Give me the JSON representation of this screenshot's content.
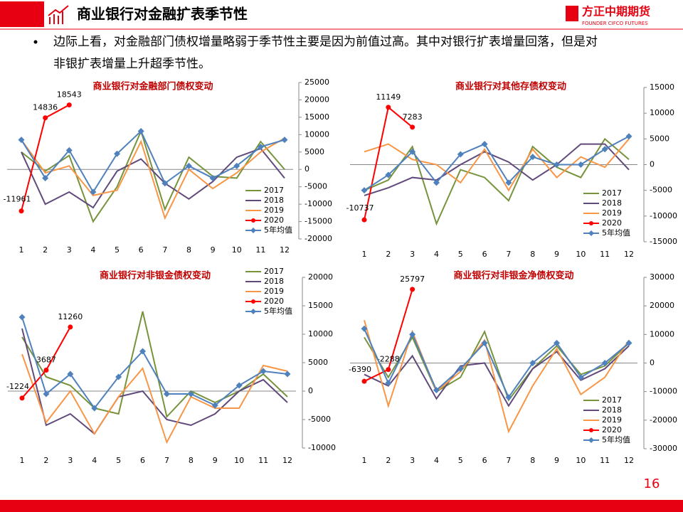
{
  "header": {
    "title": "商业银行对金融扩表季节性",
    "logo": "方正中期期货",
    "logo_en": "FOUNDER CIFCO FUTURES",
    "bullet": [
      "边际上看，对金融部门债权增量略弱于季节性主要是因为前值过高。其中对银行扩表增量回落，但是对",
      "非银扩表增量上升超季节性。"
    ],
    "page": "16"
  },
  "chart_data": [
    {
      "type": "line",
      "title": "商业银行对金融部门债权变动",
      "legend_position": "lower right",
      "categories": [
        "1",
        "2",
        "3",
        "4",
        "5",
        "6",
        "7",
        "8",
        "9",
        "10",
        "11",
        "12"
      ],
      "ylim": [
        -20000,
        25000
      ],
      "yticks": [
        -20000,
        -15000,
        -10000,
        -5000,
        0,
        5000,
        10000,
        15000,
        20000,
        25000
      ],
      "series": [
        {
          "name": "2017",
          "color": "#77933c",
          "values": [
            5000,
            -500,
            4000,
            -15000,
            -5000,
            11000,
            -11500,
            3500,
            -2000,
            -2500,
            8000,
            0
          ]
        },
        {
          "name": "2018",
          "color": "#604a7b",
          "values": [
            5000,
            -10000,
            -6500,
            -11000,
            -500,
            3000,
            -4000,
            -8500,
            -3500,
            3500,
            6000,
            -2500
          ]
        },
        {
          "name": "2019",
          "color": "#f79646",
          "values": [
            8500,
            -1000,
            1000,
            -7500,
            -6000,
            8000,
            -14000,
            0,
            -5500,
            -1000,
            5000,
            9000
          ]
        },
        {
          "name": "2020",
          "color": "#ff0000",
          "values": [
            -11961,
            14836,
            18543,
            null,
            null,
            null,
            null,
            null,
            null,
            null,
            null,
            null
          ]
        },
        {
          "name": "5年均值",
          "color": "#4f81bd",
          "values": [
            8500,
            -2500,
            5500,
            -6500,
            4500,
            11000,
            -4000,
            1000,
            -2500,
            1000,
            6500,
            8500
          ]
        }
      ]
    },
    {
      "type": "line",
      "title": "商业银行对其他存债权变动",
      "legend_position": "lower right",
      "categories": [
        "1",
        "2",
        "3",
        "4",
        "5",
        "6",
        "7",
        "8",
        "9",
        "10",
        "11",
        "12"
      ],
      "ylim": [
        -15000,
        15000
      ],
      "yticks": [
        -15000,
        -10000,
        -5000,
        0,
        5000,
        10000,
        15000
      ],
      "series": [
        {
          "name": "2017",
          "color": "#77933c",
          "values": [
            -5000,
            -3000,
            3500,
            -11500,
            -1000,
            -2500,
            -7000,
            3500,
            -500,
            -2500,
            5000,
            1000
          ]
        },
        {
          "name": "2018",
          "color": "#604a7b",
          "values": [
            -6000,
            -4500,
            -2500,
            -3000,
            0,
            2500,
            500,
            -3000,
            0,
            4000,
            4000,
            -1000
          ]
        },
        {
          "name": "2019",
          "color": "#f79646",
          "values": [
            2500,
            4000,
            1000,
            0,
            -3500,
            3000,
            -5000,
            3000,
            -2500,
            1500,
            -500,
            5000
          ]
        },
        {
          "name": "2020",
          "color": "#ff0000",
          "values": [
            -10737,
            11149,
            7283,
            null,
            null,
            null,
            null,
            null,
            null,
            null,
            null,
            null
          ]
        },
        {
          "name": "5年均值",
          "color": "#4f81bd",
          "values": [
            -5000,
            -2000,
            2500,
            -3500,
            2000,
            4000,
            -3500,
            1500,
            0,
            0,
            3000,
            5500
          ]
        }
      ]
    },
    {
      "type": "line",
      "title": "商业银行对非银金债权变动",
      "legend_position": "upper right",
      "categories": [
        "1",
        "2",
        "3",
        "4",
        "5",
        "6",
        "7",
        "8",
        "9",
        "10",
        "11",
        "12"
      ],
      "ylim": [
        -10000,
        20000
      ],
      "yticks": [
        -10000,
        -5000,
        0,
        5000,
        10000,
        15000,
        20000
      ],
      "series": [
        {
          "name": "2017",
          "color": "#77933c",
          "values": [
            9500,
            2500,
            1000,
            -3000,
            -4000,
            14000,
            -4500,
            0,
            -2000,
            0,
            3000,
            -1000
          ]
        },
        {
          "name": "2018",
          "color": "#604a7b",
          "values": [
            11000,
            -6000,
            -4000,
            -7500,
            -1000,
            0,
            -5000,
            -6000,
            -4000,
            0,
            2000,
            -2000
          ]
        },
        {
          "name": "2019",
          "color": "#f79646",
          "values": [
            6500,
            -5500,
            0,
            -7500,
            -1000,
            4000,
            -9000,
            -1000,
            -3000,
            -3000,
            4500,
            3500
          ]
        },
        {
          "name": "2020",
          "color": "#ff0000",
          "values": [
            -1224,
            3687,
            11260,
            null,
            null,
            null,
            null,
            null,
            null,
            null,
            null,
            null
          ]
        },
        {
          "name": "5年均值",
          "color": "#4f81bd",
          "values": [
            13000,
            -500,
            3000,
            -3000,
            2500,
            7000,
            -500,
            -500,
            -2500,
            1000,
            3500,
            3000
          ]
        }
      ]
    },
    {
      "type": "line",
      "title": "商业银行对非银金净债权变动",
      "legend_position": "lower right",
      "categories": [
        "1",
        "2",
        "3",
        "4",
        "5",
        "6",
        "7",
        "8",
        "9",
        "10",
        "11",
        "12"
      ],
      "ylim": [
        -30000,
        30000
      ],
      "yticks": [
        -30000,
        -20000,
        -10000,
        0,
        10000,
        20000,
        30000
      ],
      "series": [
        {
          "name": "2017",
          "color": "#77933c",
          "values": [
            9000,
            -5000,
            9000,
            -10000,
            -5000,
            11000,
            -13000,
            -2000,
            6000,
            -4000,
            -1000,
            7000
          ]
        },
        {
          "name": "2018",
          "color": "#604a7b",
          "values": [
            -4000,
            -8000,
            2500,
            -12500,
            -1000,
            0,
            -15000,
            -2000,
            4000,
            -6000,
            -2000,
            6000
          ]
        },
        {
          "name": "2019",
          "color": "#f79646",
          "values": [
            15000,
            -15000,
            11000,
            -10000,
            -3000,
            8000,
            -24000,
            -8000,
            5000,
            -11000,
            -5000,
            8000
          ]
        },
        {
          "name": "2020",
          "color": "#ff0000",
          "values": [
            -6390,
            -2288,
            25797,
            null,
            null,
            null,
            null,
            null,
            null,
            null,
            null,
            null
          ]
        },
        {
          "name": "5年均值",
          "color": "#4f81bd",
          "values": [
            12000,
            -7000,
            10000,
            -9500,
            -2000,
            7000,
            -12000,
            0,
            7000,
            -5000,
            0,
            7000
          ]
        }
      ]
    }
  ]
}
